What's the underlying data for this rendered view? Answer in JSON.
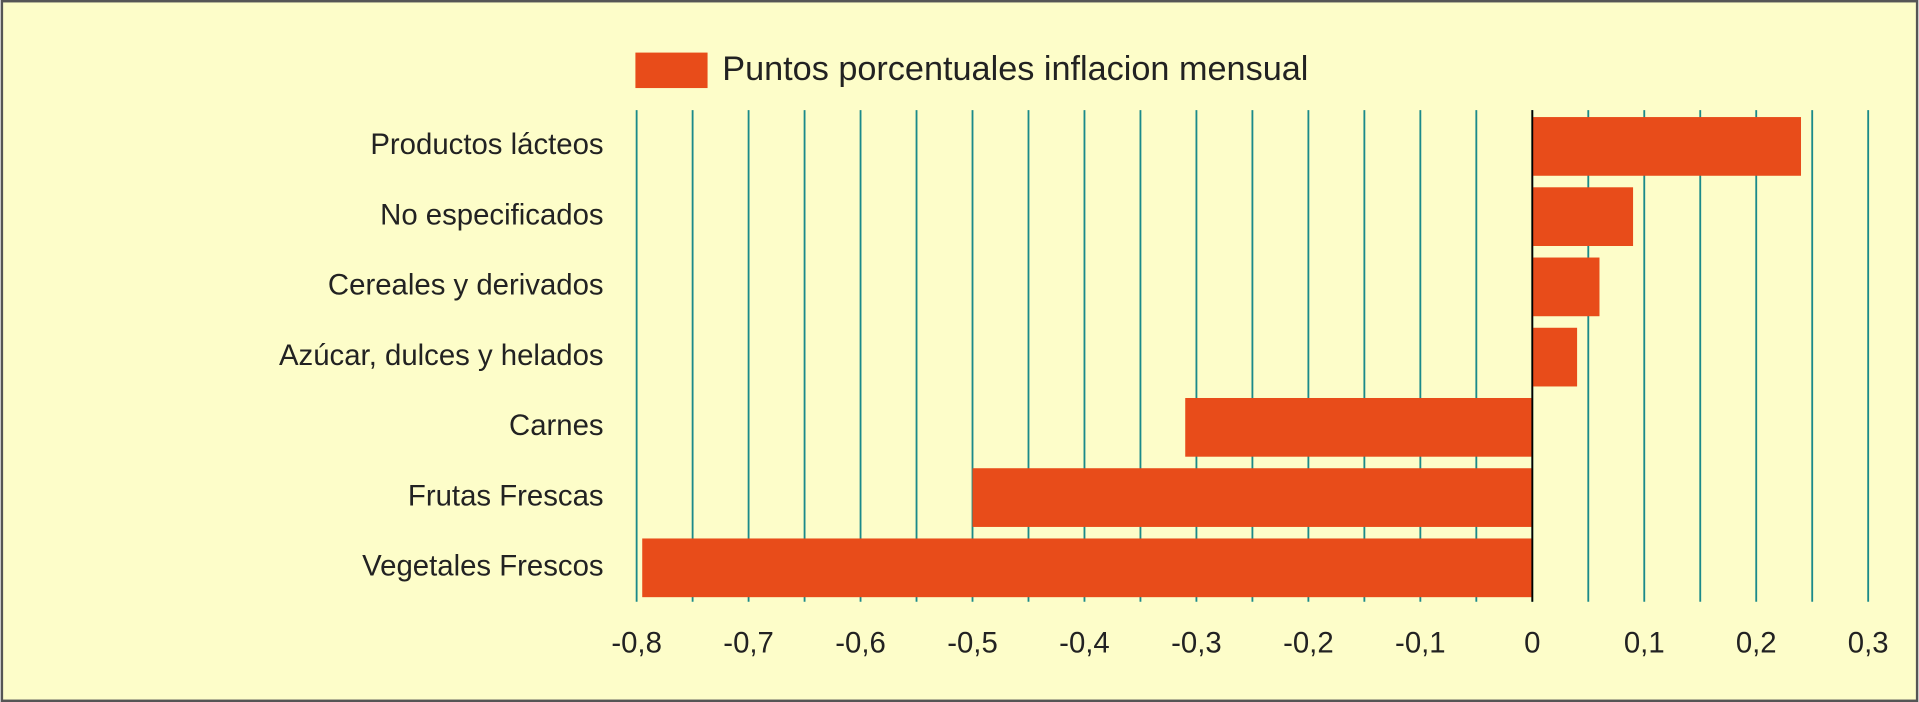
{
  "chart_data": {
    "type": "barh",
    "legend": "Puntos porcentuales inflacion mensual",
    "categories": [
      "Productos lácteos",
      "No especificados",
      "Cereales y derivados",
      "Azúcar, dulces y helados",
      "Carnes",
      "Frutas Frescas",
      "Vegetales Frescos"
    ],
    "values": [
      0.24,
      0.09,
      0.06,
      0.04,
      -0.31,
      -0.5,
      -0.795
    ],
    "color": "#e84c1a",
    "xlim": [
      -0.8,
      0.3
    ],
    "xticks": [
      {
        "value": -0.8,
        "label": "-0,8"
      },
      {
        "value": -0.7,
        "label": "-0,7"
      },
      {
        "value": -0.6,
        "label": "-0,6"
      },
      {
        "value": -0.5,
        "label": "-0,5"
      },
      {
        "value": -0.4,
        "label": "-0,4"
      },
      {
        "value": -0.3,
        "label": "-0,3"
      },
      {
        "value": -0.2,
        "label": "-0,2"
      },
      {
        "value": -0.1,
        "label": "-0,1"
      },
      0,
      {
        "value": 0.1,
        "label": "0,1"
      },
      {
        "value": 0.2,
        "label": "0,2"
      },
      {
        "value": 0.3,
        "label": "0,3"
      }
    ],
    "xgrid": [
      -0.8,
      -0.75,
      -0.7,
      -0.65,
      -0.6,
      -0.55,
      -0.5,
      -0.45,
      -0.4,
      -0.35,
      -0.3,
      -0.25,
      -0.2,
      -0.15,
      -0.1,
      -0.05,
      0,
      0.05,
      0.1,
      0.15,
      0.2,
      0.25,
      0.3
    ],
    "grid_color": "#1a8a8a"
  }
}
